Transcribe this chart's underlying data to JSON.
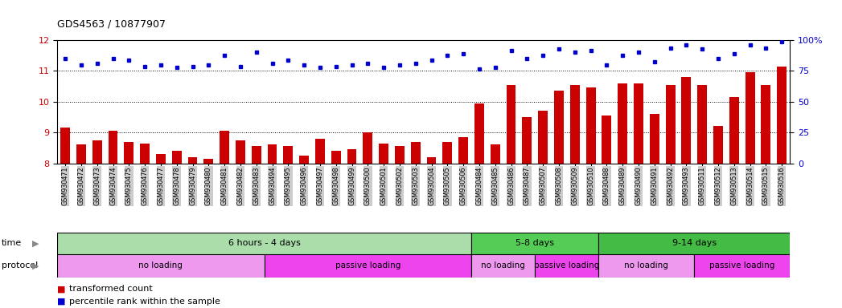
{
  "title": "GDS4563 / 10877907",
  "samples": [
    "GSM930471",
    "GSM930472",
    "GSM930473",
    "GSM930474",
    "GSM930475",
    "GSM930476",
    "GSM930477",
    "GSM930478",
    "GSM930479",
    "GSM930480",
    "GSM930481",
    "GSM930482",
    "GSM930483",
    "GSM930494",
    "GSM930495",
    "GSM930496",
    "GSM930497",
    "GSM930498",
    "GSM930499",
    "GSM930500",
    "GSM930501",
    "GSM930502",
    "GSM930503",
    "GSM930504",
    "GSM930505",
    "GSM930506",
    "GSM930484",
    "GSM930485",
    "GSM930486",
    "GSM930487",
    "GSM930507",
    "GSM930508",
    "GSM930509",
    "GSM930510",
    "GSM930488",
    "GSM930489",
    "GSM930490",
    "GSM930491",
    "GSM930492",
    "GSM930493",
    "GSM930511",
    "GSM930512",
    "GSM930513",
    "GSM930514",
    "GSM930515",
    "GSM930516"
  ],
  "bar_values": [
    9.15,
    8.6,
    8.75,
    9.05,
    8.7,
    8.65,
    8.3,
    8.4,
    8.2,
    8.15,
    9.05,
    8.75,
    8.55,
    8.6,
    8.55,
    8.25,
    8.8,
    8.4,
    8.45,
    9.0,
    8.65,
    8.55,
    8.7,
    8.2,
    8.7,
    8.85,
    9.95,
    8.6,
    10.55,
    9.5,
    9.7,
    10.35,
    10.55,
    10.45,
    9.55,
    10.6,
    10.6,
    9.6,
    10.55,
    10.8,
    10.55,
    9.2,
    10.15,
    10.95,
    10.55,
    11.15
  ],
  "dot_values": [
    11.4,
    11.2,
    11.25,
    11.4,
    11.35,
    11.15,
    11.2,
    11.1,
    11.15,
    11.2,
    11.5,
    11.15,
    11.6,
    11.25,
    11.35,
    11.2,
    11.1,
    11.15,
    11.2,
    11.25,
    11.1,
    11.2,
    11.25,
    11.35,
    11.5,
    11.55,
    11.05,
    11.1,
    11.65,
    11.4,
    11.5,
    11.7,
    11.6,
    11.65,
    11.2,
    11.5,
    11.6,
    11.3,
    11.75,
    11.85,
    11.7,
    11.4,
    11.55,
    11.85,
    11.75,
    11.95
  ],
  "ylim": [
    8.0,
    12.0
  ],
  "yticks_left": [
    8,
    9,
    10,
    11,
    12
  ],
  "yticks_right": [
    0,
    25,
    50,
    75,
    100
  ],
  "bar_color": "#CC0000",
  "dot_color": "#0000CC",
  "bar_bottom": 8.0,
  "time_groups": [
    {
      "label": "6 hours - 4 days",
      "start": 0,
      "end": 26,
      "color": "#AADDAA"
    },
    {
      "label": "5-8 days",
      "start": 26,
      "end": 34,
      "color": "#55CC55"
    },
    {
      "label": "9-14 days",
      "start": 34,
      "end": 46,
      "color": "#44BB44"
    }
  ],
  "protocol_groups": [
    {
      "label": "no loading",
      "start": 0,
      "end": 13,
      "color": "#EE99EE"
    },
    {
      "label": "passive loading",
      "start": 13,
      "end": 26,
      "color": "#EE44EE"
    },
    {
      "label": "no loading",
      "start": 26,
      "end": 30,
      "color": "#EE99EE"
    },
    {
      "label": "passive loading",
      "start": 30,
      "end": 34,
      "color": "#EE44EE"
    },
    {
      "label": "no loading",
      "start": 34,
      "end": 40,
      "color": "#EE99EE"
    },
    {
      "label": "passive loading",
      "start": 40,
      "end": 46,
      "color": "#EE44EE"
    }
  ],
  "bg_color": "#FFFFFF",
  "xlabel_bg": "#CCCCCC"
}
